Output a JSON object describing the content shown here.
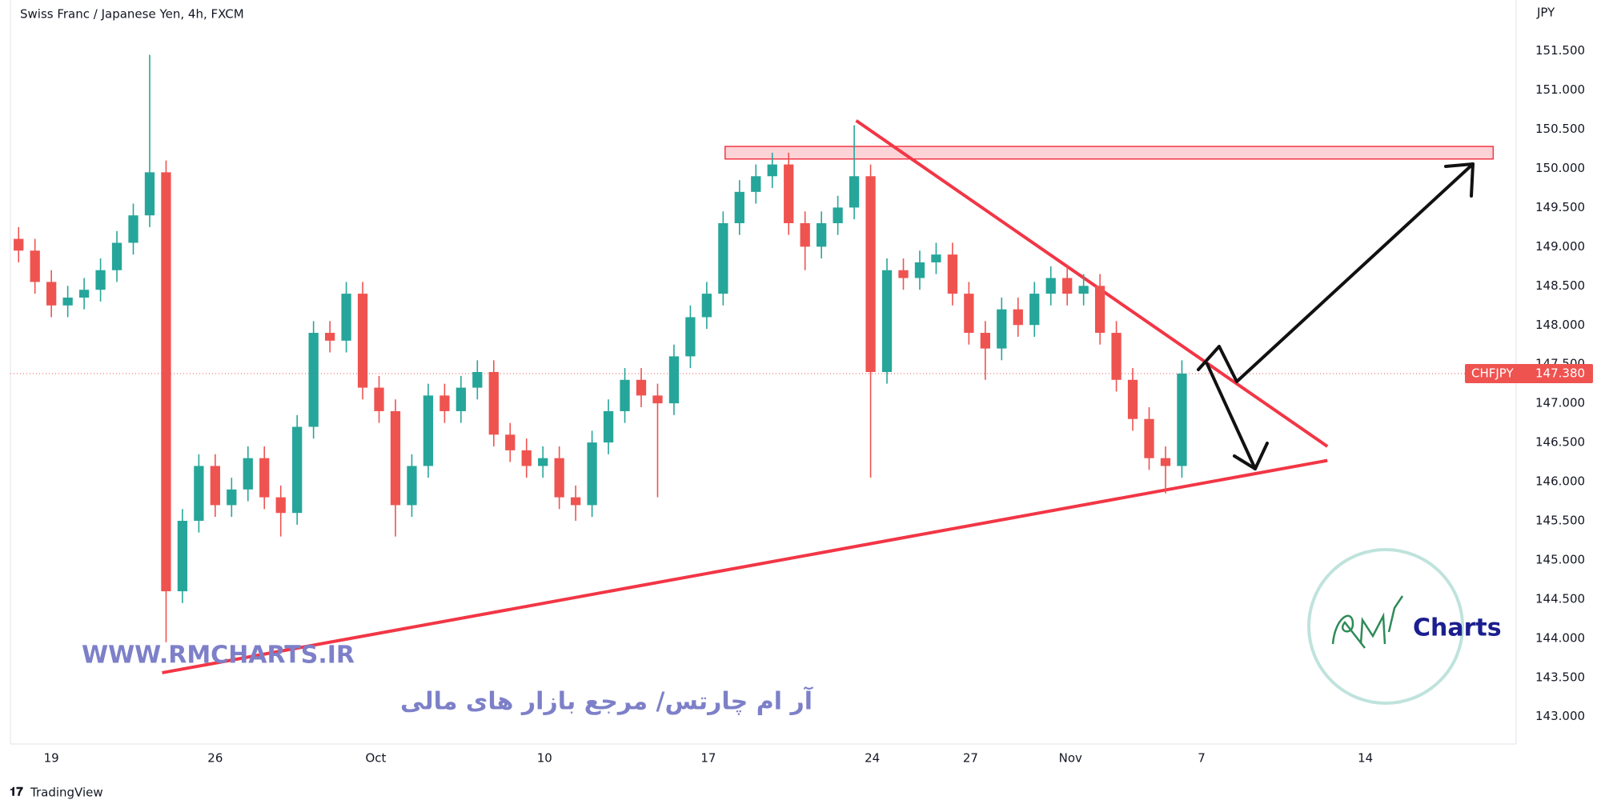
{
  "chart_data": {
    "type": "candlestick",
    "title": "Swiss Franc / Japanese Yen, 4h, FXCM",
    "y_axis_label": "JPY",
    "up_color": "#26a69a",
    "down_color": "#ef5350",
    "x": [
      -1,
      -0.5,
      0,
      0.5,
      1,
      1.5,
      2,
      2.5,
      3,
      3.5,
      4,
      4.5,
      5,
      5.5,
      6,
      6.5,
      7,
      7.5,
      8,
      8.5,
      9,
      9.5,
      10,
      10.5,
      11,
      11.5,
      12,
      12.5,
      13,
      13.5,
      14,
      14.5,
      15,
      15.5,
      16,
      16.5,
      17,
      17.5,
      18,
      18.5,
      19,
      19.5,
      20,
      20.5,
      21,
      21.5,
      22,
      22.5,
      23,
      23.5,
      24,
      24.5,
      25,
      25.5,
      26,
      26.5,
      27,
      27.5,
      28,
      28.5,
      29,
      29.5,
      30,
      30.5,
      31,
      31.5,
      32,
      32.5,
      33,
      33.5,
      34,
      34.5
    ],
    "open": [
      149.1,
      148.95,
      148.55,
      148.25,
      148.35,
      148.45,
      148.7,
      149.05,
      149.4,
      149.95,
      144.6,
      145.5,
      146.2,
      145.7,
      145.9,
      146.3,
      145.8,
      145.6,
      146.7,
      147.9,
      147.8,
      148.4,
      147.2,
      146.9,
      145.7,
      146.2,
      147.1,
      146.9,
      147.2,
      147.4,
      146.6,
      146.4,
      146.2,
      146.3,
      145.8,
      145.7,
      146.5,
      146.9,
      147.3,
      147.1,
      147.0,
      147.6,
      148.1,
      148.4,
      149.3,
      149.7,
      149.9,
      150.05,
      149.3,
      149.0,
      149.3,
      149.5,
      149.9,
      147.4,
      148.7,
      148.6,
      148.8,
      148.9,
      148.4,
      147.9,
      147.7,
      148.2,
      148.0,
      148.4,
      148.6,
      148.4,
      148.5,
      147.9,
      147.3,
      146.8,
      146.3,
      146.2
    ],
    "high": [
      149.25,
      149.1,
      148.7,
      148.5,
      148.6,
      148.85,
      149.2,
      149.55,
      151.45,
      150.1,
      145.65,
      146.35,
      146.35,
      146.05,
      146.45,
      146.45,
      145.95,
      146.85,
      148.05,
      148.05,
      148.55,
      148.55,
      147.35,
      147.05,
      146.35,
      147.25,
      147.25,
      147.35,
      147.55,
      147.55,
      146.75,
      146.55,
      146.45,
      146.45,
      145.95,
      146.65,
      147.05,
      147.45,
      147.45,
      147.25,
      147.75,
      148.25,
      148.55,
      149.45,
      149.85,
      150.05,
      150.2,
      150.2,
      149.45,
      149.45,
      149.65,
      150.55,
      150.05,
      148.85,
      148.85,
      148.95,
      149.05,
      149.05,
      148.55,
      148.05,
      148.35,
      148.35,
      148.55,
      148.75,
      148.75,
      148.65,
      148.65,
      148.05,
      147.45,
      146.95,
      146.45,
      147.55
    ],
    "low": [
      148.8,
      148.4,
      148.1,
      148.1,
      148.2,
      148.3,
      148.55,
      148.9,
      149.25,
      143.95,
      144.45,
      145.35,
      145.55,
      145.55,
      145.75,
      145.65,
      145.3,
      145.45,
      146.55,
      147.65,
      147.65,
      147.05,
      146.75,
      145.3,
      145.55,
      146.05,
      146.75,
      146.75,
      147.05,
      146.45,
      146.25,
      146.05,
      146.05,
      145.65,
      145.5,
      145.55,
      146.35,
      146.75,
      146.95,
      145.8,
      146.85,
      147.45,
      147.95,
      148.25,
      149.15,
      149.55,
      149.75,
      149.15,
      148.7,
      148.85,
      149.15,
      149.35,
      146.05,
      147.25,
      148.45,
      148.45,
      148.65,
      148.25,
      147.75,
      147.3,
      147.55,
      147.85,
      147.85,
      148.25,
      148.25,
      148.25,
      147.75,
      147.15,
      146.65,
      146.15,
      145.85,
      146.05
    ],
    "close": [
      148.95,
      148.55,
      148.25,
      148.35,
      148.45,
      148.7,
      149.05,
      149.4,
      149.95,
      144.6,
      145.5,
      146.2,
      145.7,
      145.9,
      146.3,
      145.8,
      145.6,
      146.7,
      147.9,
      147.8,
      148.4,
      147.2,
      146.9,
      145.7,
      146.2,
      147.1,
      146.9,
      147.2,
      147.4,
      146.6,
      146.4,
      146.2,
      146.3,
      145.8,
      145.7,
      146.5,
      146.9,
      147.3,
      147.1,
      147.0,
      147.6,
      148.1,
      148.4,
      149.3,
      149.7,
      149.9,
      150.05,
      149.3,
      149.0,
      149.3,
      149.5,
      149.9,
      147.4,
      148.7,
      148.6,
      148.8,
      148.9,
      148.4,
      147.9,
      147.7,
      148.2,
      148.0,
      148.4,
      148.6,
      148.4,
      148.5,
      147.9,
      147.3,
      146.8,
      146.3,
      146.2,
      147.38
    ],
    "xlim": [
      -1.25,
      44.7
    ],
    "ylim": [
      142.65,
      152.15
    ],
    "xticks": [
      {
        "value": 0,
        "label": "19"
      },
      {
        "value": 5,
        "label": "26"
      },
      {
        "value": 9.9,
        "label": "Oct"
      },
      {
        "value": 15.05,
        "label": "10"
      },
      {
        "value": 20.05,
        "label": "17"
      },
      {
        "value": 25.05,
        "label": "24"
      },
      {
        "value": 28.05,
        "label": "27"
      },
      {
        "value": 31.1,
        "label": "Nov"
      },
      {
        "value": 35.1,
        "label": "7"
      },
      {
        "value": 40.1,
        "label": "14"
      }
    ],
    "yticks": [
      {
        "value": 143,
        "label": "143.000"
      },
      {
        "value": 143.5,
        "label": "143.500"
      },
      {
        "value": 144,
        "label": "144.000"
      },
      {
        "value": 144.5,
        "label": "144.500"
      },
      {
        "value": 145,
        "label": "145.000"
      },
      {
        "value": 145.5,
        "label": "145.500"
      },
      {
        "value": 146,
        "label": "146.000"
      },
      {
        "value": 146.5,
        "label": "146.500"
      },
      {
        "value": 147,
        "label": "147.000"
      },
      {
        "value": 147.5,
        "label": "147.500"
      },
      {
        "value": 148,
        "label": "148.000"
      },
      {
        "value": 148.5,
        "label": "148.500"
      },
      {
        "value": 149,
        "label": "149.000"
      },
      {
        "value": 149.5,
        "label": "149.500"
      },
      {
        "value": 150,
        "label": "150.000"
      },
      {
        "value": 150.5,
        "label": "150.500"
      },
      {
        "value": 151,
        "label": "151.000"
      },
      {
        "value": 151.5,
        "label": "151.500"
      }
    ],
    "last_price": {
      "symbol": "CHFJPY",
      "value": 147.38,
      "label": "147.380"
    },
    "drawing_color": "#f23645",
    "zone": {
      "x": [
        20.56,
        44.0
      ],
      "y": [
        150.12,
        150.28
      ]
    },
    "trendlines": [
      {
        "x": [
          24.56,
          38.94
        ],
        "y": [
          150.61,
          146.45
        ]
      },
      {
        "x": [
          3.38,
          38.94
        ],
        "y": [
          143.56,
          146.27
        ]
      }
    ]
  },
  "watermark": {
    "site": "WWW.RMCHARTS.IR",
    "tagline": "آر ام چارتس/ مرجع بازار های مالی",
    "logo_text": "Charts"
  },
  "footer": {
    "brand": "TradingView"
  }
}
